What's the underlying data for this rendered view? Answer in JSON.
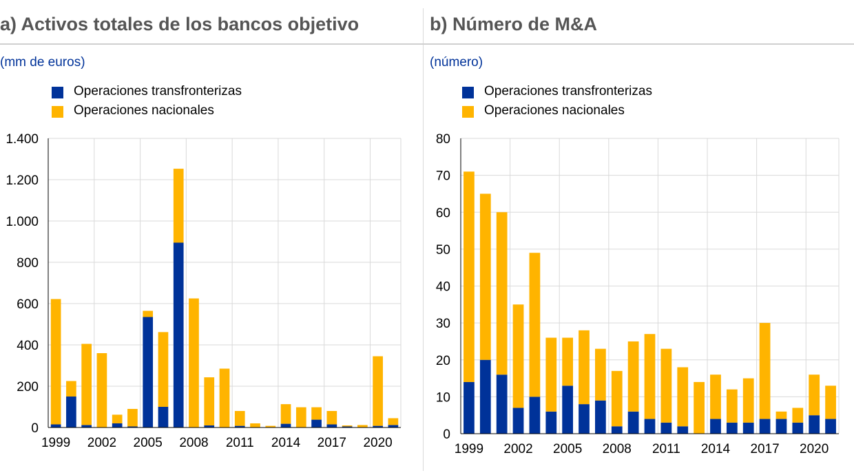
{
  "colors": {
    "cross_border": "#003299",
    "domestic": "#FFB400",
    "grid": "#d9d9d9"
  },
  "chart_data": [
    {
      "type": "bar",
      "stacked": true,
      "title": "a) Activos totales de los bancos objetivo",
      "ylabel": "(mm de euros)",
      "legend": [
        "Operaciones transfronterizas",
        "Operaciones nacionales"
      ],
      "x": [
        1999,
        2000,
        2001,
        2002,
        2003,
        2004,
        2005,
        2006,
        2007,
        2008,
        2009,
        2010,
        2011,
        2012,
        2013,
        2014,
        2015,
        2016,
        2017,
        2018,
        2019,
        2020,
        2021
      ],
      "xtick_labels": [
        "1999",
        "2002",
        "2005",
        "2008",
        "2011",
        "2014",
        "2017",
        "2020"
      ],
      "xtick_values": [
        1999,
        2002,
        2005,
        2008,
        2011,
        2014,
        2017,
        2020
      ],
      "ytick_labels": [
        "0",
        "200",
        "400",
        "600",
        "800",
        "1.000",
        "1.200",
        "1.400"
      ],
      "ylim": [
        0,
        1400
      ],
      "yticks": [
        0,
        200,
        400,
        600,
        800,
        1000,
        1200,
        1400
      ],
      "series": [
        {
          "name": "Operaciones transfronterizas",
          "values": [
            15,
            150,
            12,
            0,
            20,
            5,
            535,
            100,
            895,
            0,
            10,
            0,
            8,
            0,
            0,
            18,
            0,
            38,
            15,
            5,
            0,
            8,
            12
          ]
        },
        {
          "name": "Operaciones nacionales",
          "values": [
            607,
            75,
            393,
            360,
            42,
            85,
            30,
            362,
            358,
            625,
            233,
            285,
            72,
            20,
            8,
            95,
            98,
            60,
            65,
            5,
            12,
            337,
            33
          ]
        }
      ]
    },
    {
      "type": "bar",
      "stacked": true,
      "title": "b) Número de M&A",
      "ylabel": "(número)",
      "legend": [
        "Operaciones transfronterizas",
        "Operaciones nacionales"
      ],
      "x": [
        1999,
        2000,
        2001,
        2002,
        2003,
        2004,
        2005,
        2006,
        2007,
        2008,
        2009,
        2010,
        2011,
        2012,
        2013,
        2014,
        2015,
        2016,
        2017,
        2018,
        2019,
        2020,
        2021
      ],
      "xtick_labels": [
        "1999",
        "2002",
        "2005",
        "2008",
        "2011",
        "2014",
        "2017",
        "2020"
      ],
      "xtick_values": [
        1999,
        2002,
        2005,
        2008,
        2011,
        2014,
        2017,
        2020
      ],
      "ytick_labels": [
        "0",
        "10",
        "20",
        "30",
        "40",
        "50",
        "60",
        "70",
        "80"
      ],
      "ylim": [
        0,
        80
      ],
      "yticks": [
        0,
        10,
        20,
        30,
        40,
        50,
        60,
        70,
        80
      ],
      "series": [
        {
          "name": "Operaciones transfronterizas",
          "values": [
            14,
            20,
            16,
            7,
            10,
            6,
            13,
            8,
            9,
            2,
            6,
            4,
            3,
            2,
            0,
            4,
            3,
            3,
            4,
            4,
            3,
            5,
            4
          ]
        },
        {
          "name": "Operaciones nacionales",
          "values": [
            57,
            45,
            44,
            28,
            39,
            20,
            13,
            20,
            14,
            15,
            19,
            23,
            20,
            16,
            14,
            12,
            9,
            12,
            26,
            2,
            4,
            11,
            9
          ]
        }
      ]
    }
  ]
}
